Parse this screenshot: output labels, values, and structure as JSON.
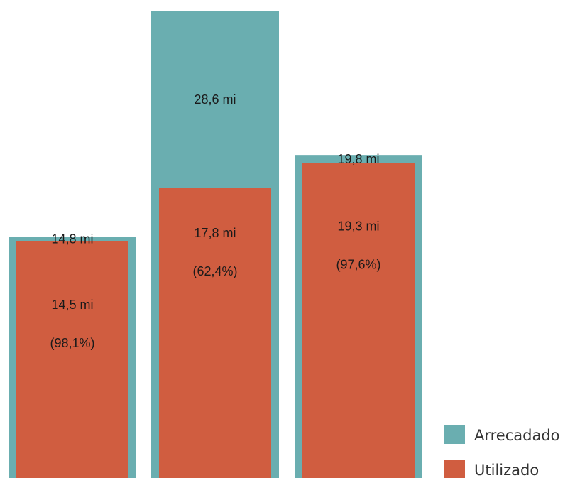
{
  "chart_data": {
    "type": "bar",
    "categories": [
      "",
      "",
      ""
    ],
    "series": [
      {
        "name": "Arrecadado",
        "values": [
          14.8,
          28.6,
          19.8
        ],
        "labels": [
          "14,8 mi",
          "28,6 mi",
          "19,8 mi"
        ],
        "color": "#6aaeb0"
      },
      {
        "name": "Utilizado",
        "values": [
          14.5,
          17.8,
          19.3
        ],
        "labels": [
          "14,5 mi",
          "17,8 mi",
          "19,3 mi"
        ],
        "percent_labels": [
          "(98,1%)",
          "(62,4%)",
          "(97,6%)"
        ],
        "color": "#d05d40"
      }
    ],
    "title": "",
    "xlabel": "",
    "ylabel": "",
    "ylim": [
      0,
      28.6
    ],
    "grid": false,
    "legend_position": "bottom-right"
  }
}
